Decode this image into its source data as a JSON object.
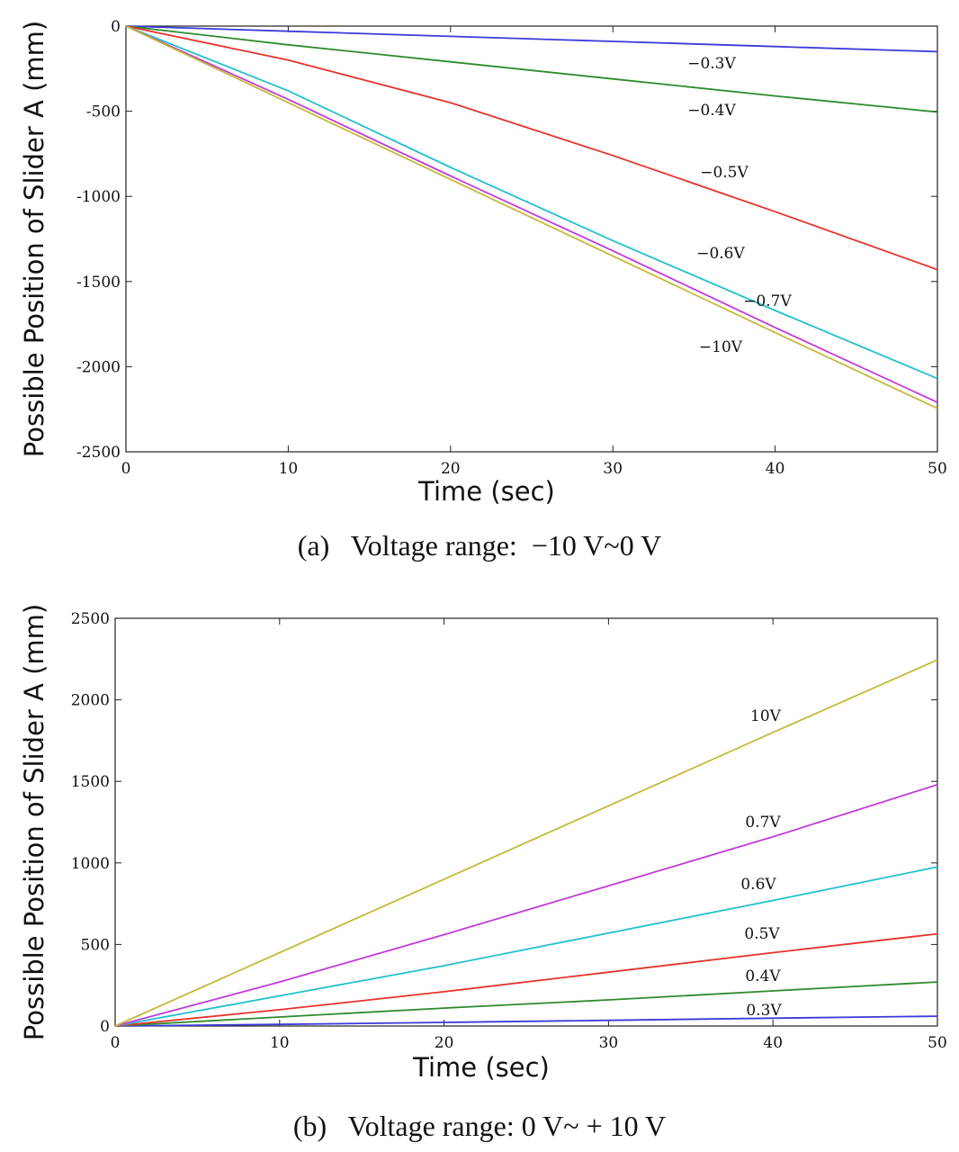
{
  "chart_data": [
    {
      "type": "line",
      "panel": "a",
      "caption": "(a)   Voltage range:  −10 V~0 V",
      "xlabel": "Time (sec)",
      "ylabel": "Possible Position of Slider A (mm)",
      "xlim": [
        0,
        50
      ],
      "ylim": [
        -2500,
        0
      ],
      "xticks": [
        "0",
        "10",
        "20",
        "30",
        "40",
        "50"
      ],
      "yticks": [
        "0",
        "-500",
        "-1000",
        "-1500",
        "-2000",
        "-2500"
      ],
      "x": [
        0,
        10,
        20,
        30,
        40,
        50
      ],
      "series": [
        {
          "name": "−0.3V",
          "color": "#3b3bd8",
          "values": [
            0,
            -30,
            -60,
            -90,
            -120,
            -150
          ]
        },
        {
          "name": "−0.4V",
          "color": "#2e8b2e",
          "values": [
            0,
            -110,
            -210,
            -310,
            -410,
            -505
          ]
        },
        {
          "name": "−0.5V",
          "color": "#e8322a",
          "values": [
            0,
            -200,
            -450,
            -760,
            -1090,
            -1430
          ]
        },
        {
          "name": "−0.6V",
          "color": "#22c0cc",
          "values": [
            0,
            -380,
            -830,
            -1260,
            -1670,
            -2070
          ]
        },
        {
          "name": "−0.7V",
          "color": "#c23bd8",
          "values": [
            0,
            -430,
            -880,
            -1320,
            -1770,
            -2210
          ]
        },
        {
          "name": "−10V",
          "color": "#c8b83a",
          "values": [
            0,
            -450,
            -900,
            -1350,
            -1800,
            -2245
          ]
        }
      ]
    },
    {
      "type": "line",
      "panel": "b",
      "caption": "(b)   Voltage range: 0 V~ + 10 V",
      "xlabel": "Time (sec)",
      "ylabel": "Possible Position of Slider A (mm)",
      "xlim": [
        0,
        50
      ],
      "ylim": [
        0,
        2500
      ],
      "xticks": [
        "0",
        "10",
        "20",
        "30",
        "40",
        "50"
      ],
      "yticks": [
        "0",
        "500",
        "1000",
        "1500",
        "2000",
        "2500"
      ],
      "x": [
        0,
        10,
        20,
        30,
        40,
        50
      ],
      "series": [
        {
          "name": "0.3V",
          "color": "#3b3bd8",
          "values": [
            0,
            10,
            22,
            35,
            48,
            60
          ]
        },
        {
          "name": "0.4V",
          "color": "#2e8b2e",
          "values": [
            0,
            55,
            110,
            160,
            215,
            270
          ]
        },
        {
          "name": "0.5V",
          "color": "#e8322a",
          "values": [
            0,
            100,
            210,
            330,
            450,
            565
          ]
        },
        {
          "name": "0.6V",
          "color": "#22c0cc",
          "values": [
            0,
            185,
            370,
            570,
            770,
            975
          ]
        },
        {
          "name": "0.7V",
          "color": "#c23bd8",
          "values": [
            0,
            270,
            560,
            860,
            1160,
            1480
          ]
        },
        {
          "name": "10V",
          "color": "#c8b83a",
          "values": [
            0,
            450,
            900,
            1350,
            1800,
            2245
          ]
        }
      ]
    }
  ]
}
